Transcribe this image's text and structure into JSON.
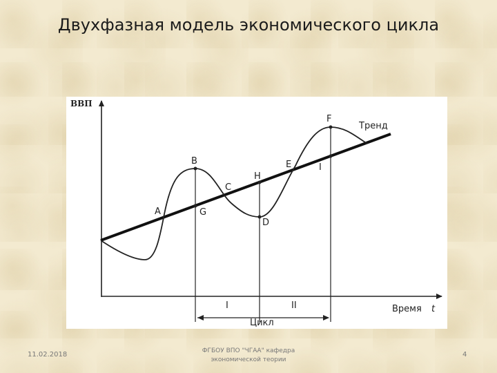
{
  "slide": {
    "title": "Двухфазная модель экономического цикла"
  },
  "diagram": {
    "y_axis_label": "ВВП",
    "x_axis_label": "Время",
    "x_axis_symbol": "t",
    "trend_label": "Тренд",
    "points": {
      "A": "A",
      "B": "B",
      "C": "C",
      "D": "D",
      "E": "E",
      "F": "F",
      "G": "G",
      "H": "H",
      "I": "I"
    },
    "phase_1": "I",
    "phase_2": "II",
    "cycle_label": "Цикл"
  },
  "footer": {
    "date": "11.02.2018",
    "org": "ФГБОУ ВПО \"ЧГАА\" кафедра экономической теории",
    "page": "4"
  }
}
